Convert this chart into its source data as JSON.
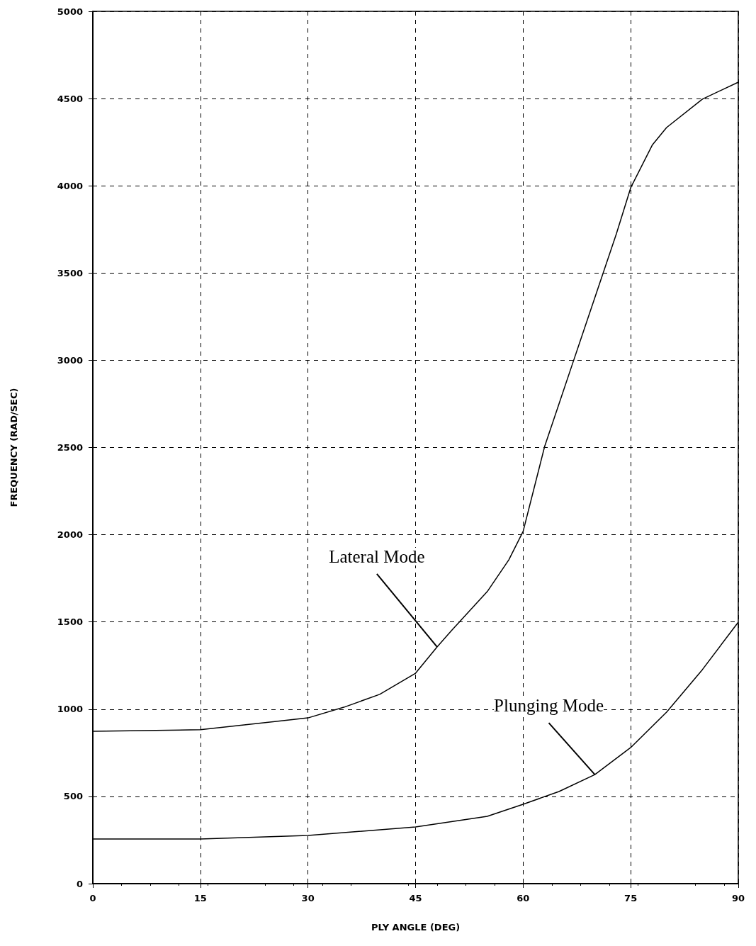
{
  "chart_data": {
    "type": "line",
    "xlabel": "PLY ANGLE (DEG)",
    "ylabel": "FREQUENCY (RAD/SEC)",
    "xlim": [
      0,
      90
    ],
    "xticks": [
      0,
      15,
      30,
      45,
      60,
      75,
      90
    ],
    "ylim": [
      0,
      5000
    ],
    "yticks": [
      0,
      500,
      1000,
      1500,
      2000,
      2500,
      3000,
      3500,
      4000,
      4500,
      5000
    ],
    "grid": true,
    "marker": "none",
    "line_style": "solid",
    "series": [
      {
        "color": "#000000",
        "x": [
          0,
          15,
          30,
          35,
          40,
          45,
          48,
          50,
          55,
          58,
          60,
          63,
          65,
          67,
          70,
          73,
          75,
          78,
          80,
          85,
          90
        ],
        "values": [
          873,
          882,
          950,
          1011,
          1085,
          1206,
          1357,
          1450,
          1674,
          1856,
          2019,
          2506,
          2750,
          2994,
          3359,
          3725,
          3989,
          4233,
          4334,
          4497,
          4594
        ]
      },
      {
        "color": "#000000",
        "x": [
          0,
          15,
          30,
          45,
          55,
          60,
          65,
          70,
          75,
          80,
          85,
          90
        ],
        "values": [
          256,
          256,
          276,
          325,
          386,
          455,
          528,
          625,
          780,
          983,
          1227,
          1499
        ]
      }
    ],
    "annotations": [
      {
        "text": "Lateral Mode",
        "x": 48,
        "y": 1357
      },
      {
        "text": "Plunging Mode",
        "x": 70,
        "y": 625
      }
    ]
  }
}
